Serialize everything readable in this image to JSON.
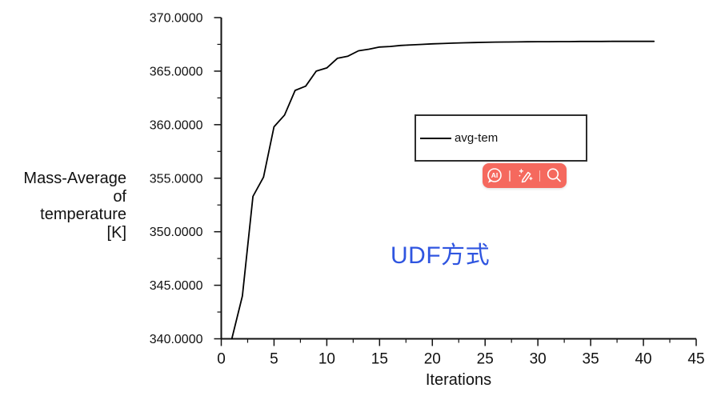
{
  "chart_data": {
    "type": "line",
    "title": "",
    "xlabel": "Iterations",
    "ylabel_lines": [
      "Mass-Average",
      "of",
      "temperature",
      "[K]"
    ],
    "xlim": [
      0,
      45
    ],
    "ylim": [
      340,
      370
    ],
    "grid": false,
    "xticks": [
      0,
      5,
      10,
      15,
      20,
      25,
      30,
      35,
      40,
      45
    ],
    "xtick_labels": [
      "0",
      "5",
      "10",
      "15",
      "20",
      "25",
      "30",
      "35",
      "40",
      "45"
    ],
    "xticks_minor": [
      2.5,
      7.5,
      12.5,
      17.5,
      22.5,
      27.5,
      32.5,
      37.5,
      42.5
    ],
    "yticks": [
      340,
      345,
      350,
      355,
      360,
      365,
      370
    ],
    "ytick_labels": [
      "340.0000",
      "345.0000",
      "350.0000",
      "355.0000",
      "360.0000",
      "365.0000",
      "370.0000"
    ],
    "yticks_minor": [
      342.5,
      347.5,
      352.5,
      357.5,
      362.5,
      367.5
    ],
    "legend": {
      "label": "avg-tem",
      "line_color": "#000000",
      "position": "center-right"
    },
    "series": [
      {
        "name": "avg-tem",
        "color": "#000000",
        "x": [
          1,
          2,
          3,
          4,
          5,
          6,
          7,
          8,
          9,
          10,
          11,
          12,
          13,
          14,
          15,
          16,
          17,
          18,
          19,
          20,
          21,
          22,
          23,
          24,
          25,
          26,
          27,
          28,
          29,
          30,
          31,
          32,
          33,
          34,
          35,
          36,
          37,
          38,
          39,
          40,
          41
        ],
        "y": [
          340.0,
          344.0,
          353.3,
          355.1,
          359.8,
          360.9,
          363.2,
          363.6,
          365.0,
          365.3,
          366.2,
          366.4,
          366.9,
          367.05,
          367.25,
          367.3,
          367.4,
          367.45,
          367.5,
          367.55,
          367.58,
          367.62,
          367.65,
          367.67,
          367.69,
          367.71,
          367.72,
          367.73,
          367.74,
          367.75,
          367.75,
          367.76,
          367.76,
          367.77,
          367.77,
          367.77,
          367.78,
          367.78,
          367.78,
          367.78,
          367.78
        ]
      }
    ]
  },
  "annotation": {
    "text": "UDF方式",
    "color": "#2f55e0"
  },
  "overlay_toolbar": {
    "background": "#f5695e",
    "icon_color": "#ffffff",
    "ai_label": "AI",
    "icons": [
      "ai-chat-icon",
      "magic-pen-icon",
      "search-icon"
    ]
  }
}
